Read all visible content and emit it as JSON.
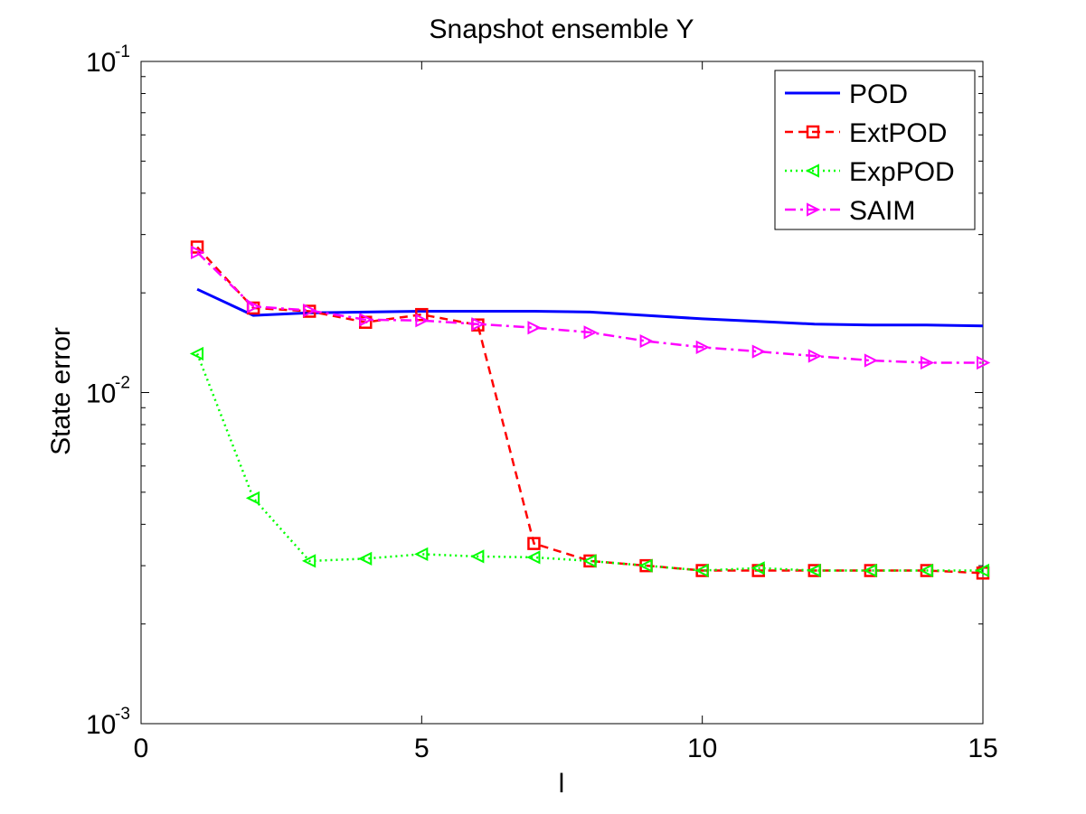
{
  "chart_data": {
    "type": "line",
    "title": "Snapshot ensemble Y",
    "xlabel": "l",
    "ylabel": "State error",
    "xlim": [
      0,
      15
    ],
    "ylim": [
      0.001,
      0.1
    ],
    "yscale": "log",
    "xticks": [
      0,
      5,
      10,
      15
    ],
    "yticks": [
      {
        "value": 0.001,
        "base": "10",
        "exp": "-3"
      },
      {
        "value": 0.01,
        "base": "10",
        "exp": "-2"
      },
      {
        "value": 0.1,
        "base": "10",
        "exp": "-1"
      }
    ],
    "legend_position": "top-right",
    "grid": false,
    "series": [
      {
        "name": "POD",
        "color": "#0000ff",
        "style": "solid",
        "marker": "none",
        "x": [
          1,
          2,
          3,
          4,
          5,
          6,
          7,
          8,
          9,
          10,
          11,
          12,
          13,
          14,
          15
        ],
        "values": [
          0.0205,
          0.0171,
          0.0174,
          0.0175,
          0.0176,
          0.0176,
          0.0176,
          0.0175,
          0.0171,
          0.0167,
          0.0164,
          0.0161,
          0.016,
          0.016,
          0.0159
        ]
      },
      {
        "name": "ExtPOD",
        "color": "#ff0000",
        "style": "dashed",
        "marker": "square",
        "x": [
          1,
          2,
          3,
          4,
          5,
          6,
          7,
          8,
          9,
          10,
          11,
          12,
          13,
          14,
          15
        ],
        "values": [
          0.0275,
          0.018,
          0.0176,
          0.0163,
          0.0172,
          0.016,
          0.0035,
          0.0031,
          0.003,
          0.0029,
          0.0029,
          0.0029,
          0.0029,
          0.0029,
          0.00285
        ]
      },
      {
        "name": "ExpPOD",
        "color": "#00ff00",
        "style": "dotted",
        "marker": "triangle-left",
        "x": [
          1,
          2,
          3,
          4,
          5,
          6,
          7,
          8,
          9,
          10,
          11,
          12,
          13,
          14,
          15
        ],
        "values": [
          0.0131,
          0.0048,
          0.0031,
          0.00315,
          0.00325,
          0.0032,
          0.00318,
          0.0031,
          0.003,
          0.0029,
          0.00295,
          0.0029,
          0.0029,
          0.0029,
          0.0029
        ]
      },
      {
        "name": "SAIM",
        "color": "#ff00ff",
        "style": "dashdot",
        "marker": "triangle-right",
        "x": [
          1,
          2,
          3,
          4,
          5,
          6,
          7,
          8,
          9,
          10,
          11,
          12,
          13,
          14,
          15
        ],
        "values": [
          0.0265,
          0.0182,
          0.0177,
          0.0166,
          0.0165,
          0.0161,
          0.0157,
          0.0152,
          0.0143,
          0.0137,
          0.0133,
          0.0129,
          0.0125,
          0.0123,
          0.0123
        ]
      }
    ]
  }
}
